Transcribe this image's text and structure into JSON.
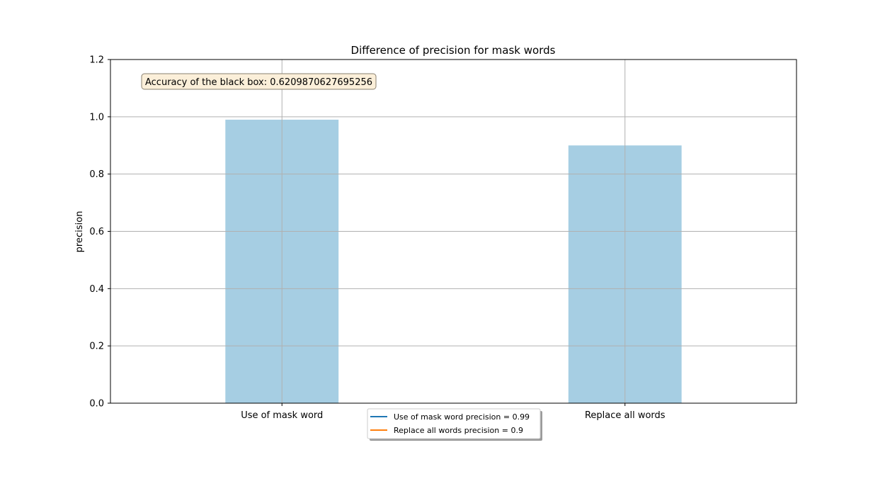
{
  "chart_data": {
    "type": "bar",
    "title": "Difference of precision for mask words",
    "xlabel": "",
    "ylabel": "precision",
    "categories": [
      "Use of mask word",
      "Replace all words"
    ],
    "values": [
      0.99,
      0.9
    ],
    "ylim": [
      0,
      1.2
    ],
    "yticks": [
      "0.0",
      "0.2",
      "0.4",
      "0.6",
      "0.8",
      "1.0",
      "1.2"
    ],
    "grid": true,
    "bar_color": "#a6cee3",
    "annotation": "Accuracy of the black box: 0.6209870627695256",
    "legend": {
      "placement": "bottom-center",
      "entries": [
        {
          "label": "Use of mask word precision = 0.99",
          "color": "#1f77b4"
        },
        {
          "label": "Replace all words precision = 0.9",
          "color": "#ff7f0e"
        }
      ]
    }
  }
}
